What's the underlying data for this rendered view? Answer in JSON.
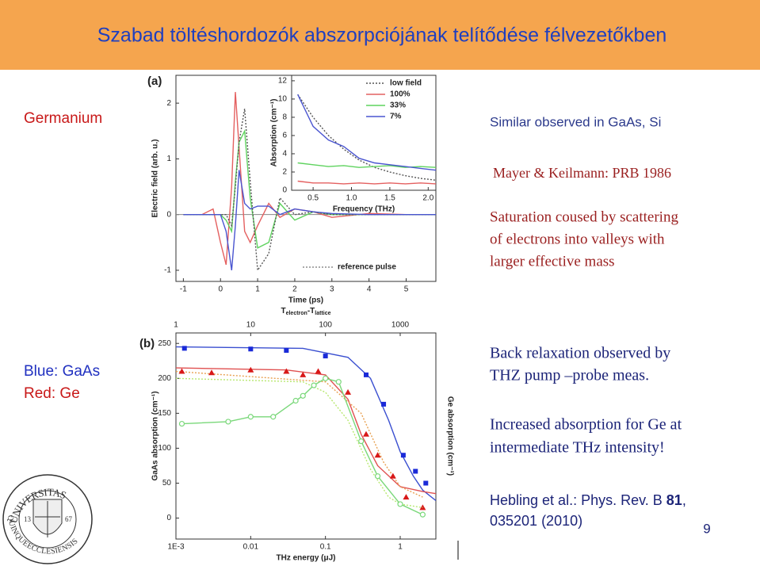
{
  "header": {
    "title": "Szabad töltéshordozók abszorpciójának telítődése félvezetőkben"
  },
  "labels": {
    "germanium": "Germanium",
    "blue": "Blue: GaAs",
    "red": "Red: Ge"
  },
  "notes": {
    "similar": "Similar observed in GaAs, Si",
    "mayer": "Mayer & Keilmann: PRB 1986",
    "saturation": [
      "Saturation coused by scattering",
      "of electrons  into valleys with",
      "larger  effective mass"
    ],
    "back": [
      "Back relaxation observed by",
      "THZ pump –probe meas."
    ],
    "increased": [
      "Increased absorption for Ge at",
      "intermediate THz intensity!"
    ],
    "reference": {
      "authors": "Hebling et al.: Phys. Rev. B",
      "volume": "81",
      "comma": ",",
      "pages": "035201 (2010)"
    }
  },
  "logo": {
    "top": "UNIVERSITAS",
    "bottom": "QUINQUEECCLESIENSIS",
    "left": "13",
    "right": "67"
  },
  "page_number": "9",
  "chart_data": [
    {
      "type": "line",
      "panel_label": "(a)",
      "ylabel": "Electric field (arb. u.)",
      "xlabel": "Time (ps)",
      "xlim": [
        -1.2,
        5.8
      ],
      "ylim": [
        -1.2,
        2.5
      ],
      "xticks": [
        -1,
        0,
        1,
        2,
        3,
        4,
        5
      ],
      "yticks": [
        -1,
        0,
        1,
        2
      ],
      "zero_line": true,
      "annotation": "reference pulse",
      "x": [
        -1,
        -0.5,
        -0.2,
        0,
        0.15,
        0.3,
        0.4,
        0.5,
        0.65,
        0.8,
        1,
        1.3,
        1.6,
        2,
        2.5,
        3,
        4,
        5,
        5.8
      ],
      "series": [
        {
          "color": "#e46060",
          "style": "solid",
          "values": [
            0,
            0,
            0.1,
            -0.5,
            -0.9,
            0.5,
            2.2,
            1.2,
            -0.3,
            -0.5,
            -0.2,
            0.2,
            -0.05,
            0.1,
            0.05,
            -0.05,
            0.02,
            0,
            0
          ]
        },
        {
          "color": "#5fd35f",
          "style": "solid",
          "values": [
            0,
            0,
            0,
            0,
            -0.1,
            -0.3,
            0.6,
            1.3,
            1.5,
            0.3,
            -0.6,
            -0.5,
            0.2,
            -0.1,
            0.05,
            0,
            0,
            0,
            0
          ]
        },
        {
          "color": "#555555",
          "style": "dotted",
          "values": [
            0,
            0,
            0,
            0,
            0,
            -0.2,
            0.5,
            1.3,
            1.9,
            0.6,
            -1.0,
            -0.7,
            0.3,
            0,
            0.05,
            0,
            0,
            0,
            0
          ]
        },
        {
          "color": "#4a55d0",
          "style": "solid",
          "values": [
            0,
            0,
            0,
            0,
            -0.3,
            -1.0,
            -0.2,
            0.8,
            0.2,
            0.1,
            0.15,
            0.15,
            0,
            0.1,
            0.05,
            0.02,
            0,
            0,
            0
          ]
        }
      ]
    },
    {
      "type": "line",
      "ylabel": "Absorption (cm⁻¹)",
      "xlabel": "Frequency (THz)",
      "xlim": [
        0.22,
        2.1
      ],
      "ylim": [
        0,
        12.6
      ],
      "xticks": [
        0.5,
        {
          "value": 1,
          "label": "1.0"
        },
        1.5,
        {
          "value": 2,
          "label": "2.0"
        }
      ],
      "yticks": [
        0,
        2,
        4,
        6,
        8,
        10,
        12
      ],
      "legend": "upper right",
      "x": [
        0.3,
        0.5,
        0.7,
        0.9,
        1.1,
        1.3,
        1.5,
        1.7,
        1.9,
        2.1
      ],
      "series": [
        {
          "name": "low field",
          "color": "#555555",
          "style": "dotted",
          "values": [
            10.5,
            8,
            6,
            4.5,
            3.3,
            2.5,
            2,
            1.6,
            1.3,
            1.1
          ]
        },
        {
          "name": "100%",
          "color": "#e46060",
          "style": "solid",
          "values": [
            1,
            0.8,
            0.8,
            0.7,
            0.8,
            0.7,
            0.8,
            0.7,
            0.8,
            0.7
          ]
        },
        {
          "name": "33%",
          "color": "#5fd35f",
          "style": "solid",
          "values": [
            3,
            2.8,
            2.6,
            2.7,
            2.5,
            2.6,
            2.7,
            2.5,
            2.6,
            2.5
          ]
        },
        {
          "name": "7%",
          "color": "#4a55d0",
          "style": "solid",
          "values": [
            10.5,
            7,
            5.5,
            4.8,
            3.5,
            3,
            2.8,
            2.6,
            2.4,
            2.2
          ]
        }
      ]
    },
    {
      "type": "line",
      "panel_label": "(b)",
      "ylabel": "GaAs absorption (cm⁻¹)",
      "y2label": "Ge absorption (cm⁻¹)",
      "xlabel": "THz energy (μJ)",
      "x_scale": "log",
      "xlim": [
        0.001,
        3
      ],
      "ylim": [
        -30,
        265
      ],
      "xticks": [
        {
          "value": 0.001,
          "label": "1E-3"
        },
        0.01,
        0.1,
        1
      ],
      "yticks": [
        0,
        50,
        100,
        150,
        200,
        250
      ],
      "top_axis": {
        "label_parts": [
          "T",
          "electron",
          "-T",
          "lattice"
        ],
        "lim": [
          1,
          3000
        ],
        "ticks": [
          1,
          10,
          100,
          1000
        ]
      },
      "series": [
        {
          "color": "#3a4fd0",
          "style": "solid",
          "line": true,
          "x": [
            0.001,
            0.05,
            0.2,
            0.4,
            0.7,
            1,
            1.5,
            2,
            3
          ],
          "values": [
            245,
            243,
            230,
            200,
            140,
            95,
            60,
            40,
            25
          ]
        },
        {
          "color": "#1a2ad8",
          "marker": "square",
          "line": false,
          "x": [
            0.0013,
            0.01,
            0.03,
            0.1,
            0.35,
            0.6,
            1.1,
            1.6,
            2.2
          ],
          "values": [
            243,
            242,
            240,
            232,
            205,
            163,
            90,
            67,
            50
          ]
        },
        {
          "color": "#e05050",
          "style": "solid",
          "line": true,
          "x": [
            0.001,
            0.03,
            0.1,
            0.2,
            0.3,
            0.5,
            1,
            2,
            3
          ],
          "values": [
            215,
            212,
            205,
            170,
            120,
            75,
            45,
            38,
            35
          ]
        },
        {
          "color": "#e8a050",
          "style": "dotted",
          "line": true,
          "x": [
            0.001,
            0.1,
            0.3,
            0.6,
            1,
            2
          ],
          "values": [
            210,
            195,
            150,
            80,
            45,
            30
          ]
        },
        {
          "color": "#d81818",
          "marker": "triangle",
          "line": false,
          "x": [
            0.0012,
            0.003,
            0.01,
            0.03,
            0.05,
            0.08,
            0.2,
            0.35,
            0.5,
            0.8,
            1.2,
            2
          ],
          "values": [
            210,
            208,
            212,
            210,
            205,
            210,
            180,
            120,
            90,
            60,
            30,
            15
          ]
        },
        {
          "color": "#b8e870",
          "style": "dotted",
          "line": true,
          "x": [
            0.001,
            0.05,
            0.1,
            0.2,
            0.4,
            0.7,
            1,
            2
          ],
          "values": [
            200,
            195,
            180,
            140,
            70,
            30,
            20,
            15
          ]
        },
        {
          "color": "#7ad87a",
          "style": "solid",
          "marker": "circle",
          "line": true,
          "x": [
            0.0012,
            0.005,
            0.01,
            0.02,
            0.04,
            0.05,
            0.07,
            0.1,
            0.15,
            0.3,
            0.5,
            1,
            2
          ],
          "values": [
            135,
            138,
            145,
            145,
            168,
            175,
            190,
            200,
            195,
            110,
            60,
            20,
            5
          ]
        }
      ]
    }
  ]
}
